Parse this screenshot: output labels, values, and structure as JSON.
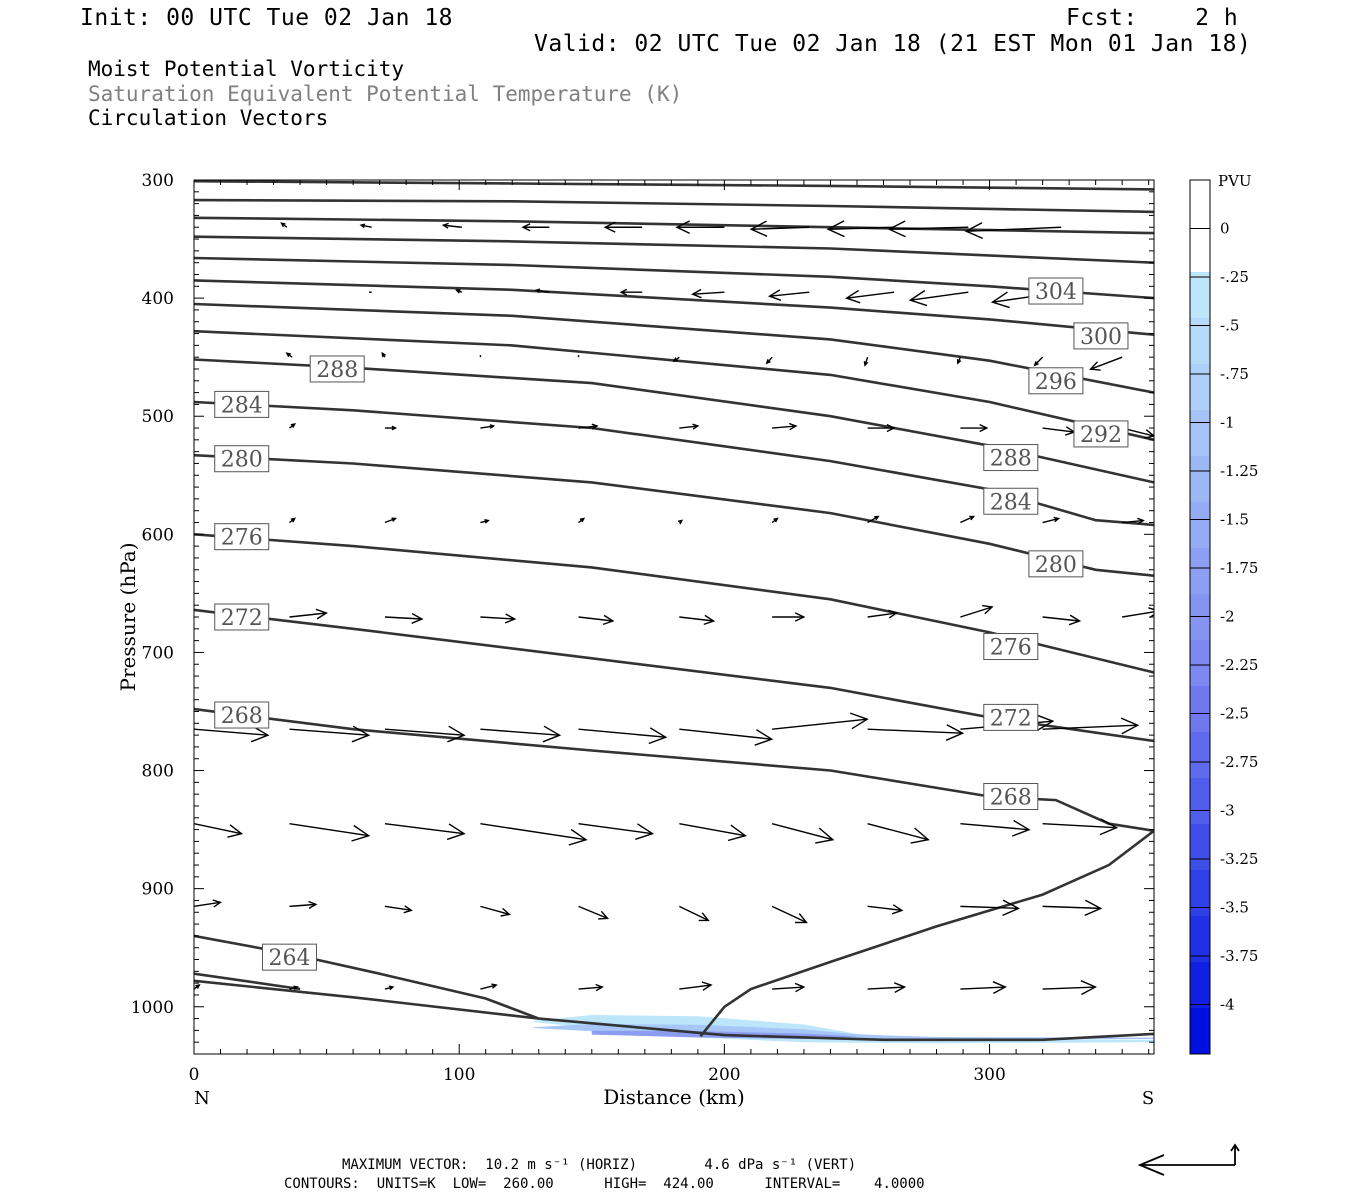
{
  "header": {
    "init": "Init: 00 UTC Tue 02 Jan 18",
    "fcst": "Fcst:    2 h",
    "valid": "Valid: 02 UTC Tue 02 Jan 18 (21 EST Mon 01 Jan 18)"
  },
  "titles": {
    "line1": "Moist Potential Vorticity",
    "line2": "Saturation Equivalent Potential Temperature (K)",
    "line3": "Circulation Vectors"
  },
  "footer": {
    "max_vector": "MAXIMUM VECTOR:  10.2 m s⁻¹ (HORIZ)        4.6 dPa s⁻¹ (VERT)",
    "contours": "CONTOURS:  UNITS=K  LOW=  260.00      HIGH=  424.00      INTERVAL=    4.0000"
  },
  "colors": {
    "contour": "#333333",
    "pv_light": "#bde6fb",
    "pv_mid": "#a5c6f7",
    "pv_strong": "#8c9cf1"
  },
  "chart_data": {
    "type": "contour",
    "xlabel": "Distance (km)",
    "ylabel": "Pressure (hPa)",
    "xlim": [
      0,
      362
    ],
    "ylim": [
      1040,
      300
    ],
    "x_ticks": [
      0,
      100,
      200,
      300
    ],
    "y_ticks": [
      300,
      400,
      500,
      600,
      700,
      800,
      900,
      1000
    ],
    "x_end_labels": {
      "left": "N",
      "right": "S"
    },
    "colorbar": {
      "title": "PVU",
      "labels": [
        "0",
        "-.25",
        "-.5",
        "-.75",
        "-1",
        "-1.25",
        "-1.5",
        "-1.75",
        "-2",
        "-2.25",
        "-2.5",
        "-2.75",
        "-3",
        "-3.25",
        "-3.5",
        "-3.75",
        "-4"
      ],
      "colors": [
        "#ffffff",
        "#ffffff",
        "#bde6fb",
        "#b5daf9",
        "#adcff8",
        "#a5c3f7",
        "#9db7f5",
        "#95abf4",
        "#8d9ff3",
        "#8593f1",
        "#7d87f0",
        "#7078ee",
        "#606aec",
        "#505cea",
        "#404ee8",
        "#3040e7",
        "#2030e6",
        "#1020e3",
        "#0010e0"
      ]
    },
    "contours": [
      {
        "label": "",
        "points": [
          [
            0,
            301
          ],
          [
            120,
            303
          ],
          [
            240,
            305
          ],
          [
            362,
            308
          ]
        ]
      },
      {
        "label": "",
        "points": [
          [
            0,
            317
          ],
          [
            120,
            318
          ],
          [
            240,
            322
          ],
          [
            362,
            327
          ]
        ]
      },
      {
        "label": "",
        "points": [
          [
            0,
            332
          ],
          [
            120,
            335
          ],
          [
            240,
            340
          ],
          [
            362,
            345
          ]
        ]
      },
      {
        "label": "",
        "points": [
          [
            0,
            348
          ],
          [
            120,
            352
          ],
          [
            240,
            358
          ],
          [
            362,
            370
          ]
        ]
      },
      {
        "label": "304",
        "lx": 325,
        "ly": 394,
        "points": [
          [
            0,
            366
          ],
          [
            120,
            372
          ],
          [
            240,
            382
          ],
          [
            300,
            390
          ],
          [
            362,
            400
          ]
        ]
      },
      {
        "label": "300",
        "lx": 342,
        "ly": 432,
        "points": [
          [
            0,
            385
          ],
          [
            120,
            393
          ],
          [
            240,
            408
          ],
          [
            300,
            418
          ],
          [
            362,
            431
          ]
        ]
      },
      {
        "label": "296",
        "lx": 325,
        "ly": 470,
        "points": [
          [
            0,
            405
          ],
          [
            120,
            415
          ],
          [
            240,
            435
          ],
          [
            300,
            453
          ],
          [
            362,
            480
          ]
        ]
      },
      {
        "label": "292",
        "lx": 342,
        "ly": 515,
        "points": [
          [
            0,
            428
          ],
          [
            120,
            440
          ],
          [
            240,
            465
          ],
          [
            300,
            488
          ],
          [
            362,
            520
          ]
        ]
      },
      {
        "label": "288",
        "lx": 54,
        "ly": 460,
        "points": [
          [
            0,
            452
          ],
          [
            60,
            459
          ],
          [
            150,
            472
          ],
          [
            240,
            500
          ],
          [
            300,
            525
          ],
          [
            362,
            556
          ]
        ]
      },
      {
        "label": "288",
        "lx": 308,
        "ly": 535,
        "points": []
      },
      {
        "label": "284",
        "lx": 18,
        "ly": 490,
        "points": [
          [
            0,
            488
          ],
          [
            60,
            495
          ],
          [
            150,
            510
          ],
          [
            240,
            538
          ],
          [
            300,
            562
          ],
          [
            340,
            588
          ],
          [
            362,
            592
          ]
        ]
      },
      {
        "label": "284",
        "lx": 308,
        "ly": 572,
        "points": []
      },
      {
        "label": "280",
        "lx": 18,
        "ly": 536,
        "points": [
          [
            0,
            533
          ],
          [
            60,
            540
          ],
          [
            150,
            556
          ],
          [
            240,
            582
          ],
          [
            300,
            608
          ],
          [
            340,
            630
          ],
          [
            362,
            635
          ]
        ]
      },
      {
        "label": "280",
        "lx": 325,
        "ly": 625,
        "points": []
      },
      {
        "label": "276",
        "lx": 18,
        "ly": 602,
        "points": [
          [
            0,
            600
          ],
          [
            60,
            610
          ],
          [
            150,
            628
          ],
          [
            240,
            655
          ],
          [
            300,
            683
          ],
          [
            362,
            717
          ]
        ]
      },
      {
        "label": "276",
        "lx": 308,
        "ly": 695,
        "points": []
      },
      {
        "label": "272",
        "lx": 18,
        "ly": 670,
        "points": [
          [
            0,
            664
          ],
          [
            60,
            680
          ],
          [
            150,
            705
          ],
          [
            240,
            730
          ],
          [
            300,
            755
          ],
          [
            362,
            775
          ]
        ]
      },
      {
        "label": "272",
        "lx": 308,
        "ly": 755,
        "points": []
      },
      {
        "label": "268",
        "lx": 18,
        "ly": 753,
        "points": [
          [
            0,
            748
          ],
          [
            60,
            765
          ],
          [
            150,
            783
          ],
          [
            240,
            800
          ],
          [
            300,
            822
          ],
          [
            325,
            825
          ],
          [
            345,
            845
          ],
          [
            362,
            851
          ]
        ]
      },
      {
        "label": "268",
        "lx": 308,
        "ly": 822,
        "points": []
      },
      {
        "label": "264",
        "lx": 36,
        "ly": 958,
        "points": [
          [
            0,
            940
          ],
          [
            36,
            955
          ],
          [
            70,
            972
          ],
          [
            110,
            993
          ],
          [
            130,
            1010
          ]
        ]
      },
      {
        "label": "",
        "points": [
          [
            0,
            972
          ],
          [
            40,
            985
          ]
        ]
      },
      {
        "label": "",
        "points": [
          [
            0,
            978
          ],
          [
            60,
            992
          ],
          [
            130,
            1010
          ],
          [
            200,
            1024
          ],
          [
            260,
            1028
          ],
          [
            320,
            1028
          ],
          [
            362,
            1023
          ]
        ]
      },
      {
        "label": "",
        "points": [
          [
            191,
            1025
          ],
          [
            200,
            1000
          ],
          [
            210,
            985
          ],
          [
            240,
            962
          ],
          [
            280,
            932
          ],
          [
            320,
            905
          ],
          [
            345,
            880
          ],
          [
            362,
            851
          ]
        ]
      }
    ],
    "pv_fill": [
      [
        128,
        1012
      ],
      [
        150,
        1007
      ],
      [
        190,
        1008
      ],
      [
        230,
        1015
      ],
      [
        250,
        1023
      ],
      [
        280,
        1027
      ],
      [
        362,
        1028
      ],
      [
        362,
        1030
      ],
      [
        280,
        1031
      ],
      [
        230,
        1030
      ],
      [
        190,
        1026
      ],
      [
        150,
        1018
      ],
      [
        128,
        1013
      ]
    ],
    "vectors": [
      {
        "p": 340,
        "x0": [
          35,
          67,
          101,
          134,
          169,
          200,
          232,
          264,
          292,
          327
        ],
        "u": [
          -2,
          -4,
          -7,
          -10,
          -14,
          -18,
          -22,
          -25,
          -30,
          -36
        ],
        "v": [
          -2,
          -1,
          -1,
          0,
          0,
          0,
          1,
          1,
          1,
          2
        ]
      },
      {
        "p": 395,
        "x0": [
          35,
          67,
          101,
          134,
          169,
          200,
          232,
          264,
          292,
          327
        ],
        "u": [
          0,
          -1,
          -2,
          -5,
          -8,
          -12,
          -15,
          -18,
          -22,
          -26
        ],
        "v": [
          0,
          0,
          -1,
          -1,
          0,
          1,
          2,
          3,
          4,
          5
        ]
      },
      {
        "p": 450,
        "x0": [
          37,
          72,
          108,
          145,
          183,
          218,
          254,
          289,
          320,
          350
        ],
        "u": [
          -2,
          -1,
          0,
          0,
          -2,
          -2,
          -1,
          -1,
          -3,
          -12
        ],
        "v": [
          -2,
          -2,
          -1,
          -1,
          2,
          3,
          4,
          3,
          4,
          6
        ]
      },
      {
        "p": 510,
        "x0": [
          36,
          72,
          108,
          145,
          183,
          218,
          254,
          289,
          320,
          350
        ],
        "u": [
          2,
          4,
          5,
          7,
          7,
          9,
          10,
          10,
          12,
          12
        ],
        "v": [
          -2,
          0,
          -1,
          -1,
          -1,
          -1,
          0,
          0,
          2,
          4
        ]
      },
      {
        "p": 590,
        "x0": [
          36,
          72,
          108,
          145,
          183,
          218,
          254,
          289,
          320,
          350
        ],
        "u": [
          2,
          4,
          3,
          2,
          1,
          2,
          4,
          5,
          6,
          8
        ],
        "v": [
          -2,
          -2,
          -1,
          -2,
          -1,
          -2,
          -3,
          -3,
          -2,
          -1
        ]
      },
      {
        "p": 670,
        "x0": [
          36,
          72,
          108,
          145,
          183,
          218,
          254,
          289,
          320,
          350
        ],
        "u": [
          14,
          14,
          13,
          13,
          13,
          12,
          11,
          12,
          14,
          14
        ],
        "v": [
          -2,
          1,
          1,
          2,
          2,
          0,
          -2,
          -5,
          2,
          -3
        ]
      },
      {
        "p": 765,
        "x0": [
          0,
          36,
          72,
          108,
          145,
          183,
          218,
          254,
          289,
          320
        ],
        "u": [
          28,
          30,
          30,
          30,
          33,
          35,
          36,
          36,
          35,
          36
        ],
        "v": [
          3,
          3,
          3,
          3,
          4,
          5,
          -5,
          2,
          -4,
          -2
        ]
      },
      {
        "p": 845,
        "x0": [
          0,
          36,
          72,
          108,
          145,
          183,
          218,
          254,
          289,
          320
        ],
        "u": [
          18,
          30,
          30,
          40,
          28,
          25,
          23,
          23,
          26,
          28
        ],
        "v": [
          5,
          6,
          5,
          8,
          5,
          6,
          8,
          8,
          3,
          2
        ]
      },
      {
        "p": 915,
        "x0": [
          0,
          36,
          72,
          108,
          145,
          183,
          218,
          254,
          289,
          320
        ],
        "u": [
          10,
          10,
          10,
          11,
          11,
          11,
          13,
          13,
          22,
          22
        ],
        "v": [
          -2,
          -1,
          2,
          4,
          6,
          7,
          8,
          2,
          1,
          1
        ]
      },
      {
        "p": 985,
        "x0": [
          0,
          36,
          72,
          108,
          145,
          183,
          218,
          254,
          289,
          320
        ],
        "u": [
          2,
          3,
          3,
          6,
          9,
          12,
          12,
          14,
          17,
          20
        ],
        "v": [
          -2,
          -1,
          -1,
          -2,
          -1,
          -2,
          -1,
          -1,
          -1,
          -1
        ]
      }
    ]
  }
}
